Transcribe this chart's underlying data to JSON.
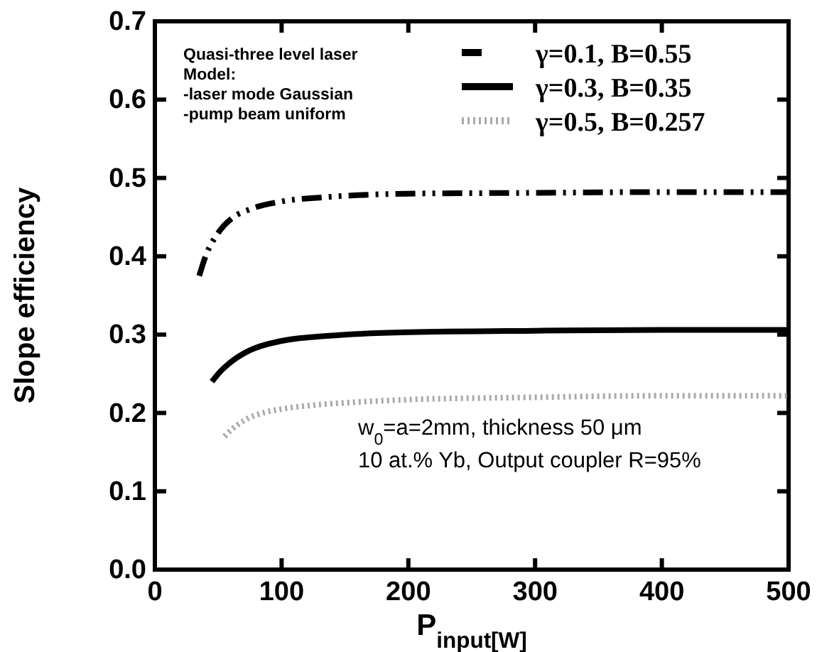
{
  "chart_data": {
    "type": "line",
    "xlabel": "P$_{input[W]}$",
    "ylabel": "Slope efficiency",
    "xlim": [
      0,
      500
    ],
    "xticks": [
      0,
      100,
      200,
      300,
      400,
      500
    ],
    "ylim": [
      0,
      0.7
    ],
    "yticks": [
      {
        "value": 0,
        "label": "0.0"
      },
      0.1,
      0.2,
      0.3,
      0.4,
      0.5,
      0.6,
      0.7
    ],
    "grid": false,
    "legend": "top right",
    "series": [
      {
        "name": "γ=0.1,  B=0.55",
        "color": "#000000",
        "line_style": "dashed",
        "x": [
          35,
          40,
          50,
          62,
          75,
          100,
          130,
          160,
          200,
          300,
          400,
          500
        ],
        "values": [
          0.375,
          0.4,
          0.43,
          0.45,
          0.46,
          0.47,
          0.475,
          0.478,
          0.48,
          0.481,
          0.482,
          0.482
        ]
      },
      {
        "name": "γ=0.3,  B=0.35",
        "color": "#000000",
        "line_style": "solid",
        "x": [
          45,
          50,
          60,
          75,
          100,
          125,
          150,
          200,
          300,
          400,
          500
        ],
        "values": [
          0.24,
          0.25,
          0.265,
          0.28,
          0.292,
          0.297,
          0.3,
          0.303,
          0.305,
          0.306,
          0.306
        ]
      },
      {
        "name": "γ=0.5,  B=0.257",
        "color": "#aaaaaa",
        "line_style": "dotted",
        "x": [
          55,
          60,
          70,
          85,
          100,
          125,
          150,
          200,
          300,
          400,
          500
        ],
        "values": [
          0.17,
          0.178,
          0.19,
          0.2,
          0.205,
          0.21,
          0.213,
          0.217,
          0.22,
          0.222,
          0.222
        ]
      }
    ],
    "annotations": [
      "Quasi-three level laser\nModel:\n-laser mode Gaussian\n-pump beam uniform",
      "w$_{0}$=a=2mm, thickness 50 μm\n10 at.% Yb, Output coupler R=95%"
    ]
  }
}
